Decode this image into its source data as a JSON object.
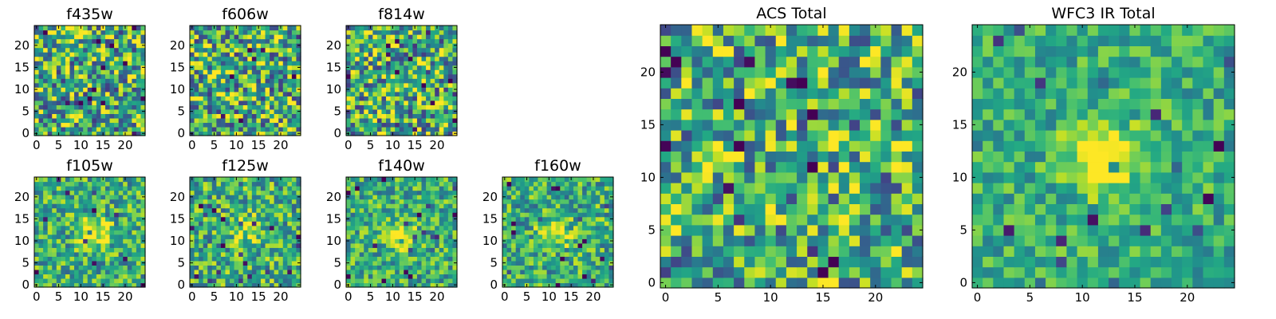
{
  "chart_data": [
    {
      "type": "heatmap",
      "title": "f435w",
      "grid": 24,
      "xlim": [
        -0.5,
        24.5
      ],
      "ylim": [
        -0.5,
        24.5
      ],
      "xticks": [
        0,
        5,
        10,
        15,
        20
      ],
      "yticks": [
        0,
        5,
        10,
        15,
        20
      ],
      "pattern": "noise",
      "seed": 11,
      "peak": 0.0,
      "nlev": 0.45
    },
    {
      "type": "heatmap",
      "title": "f606w",
      "grid": 24,
      "xlim": [
        -0.5,
        24.5
      ],
      "ylim": [
        -0.5,
        24.5
      ],
      "xticks": [
        0,
        5,
        10,
        15,
        20
      ],
      "yticks": [
        0,
        5,
        10,
        15,
        20
      ],
      "pattern": "noise",
      "seed": 23,
      "peak": 0.0,
      "nlev": 0.45
    },
    {
      "type": "heatmap",
      "title": "f814w",
      "grid": 24,
      "xlim": [
        -0.5,
        24.5
      ],
      "ylim": [
        -0.5,
        24.5
      ],
      "xticks": [
        0,
        5,
        10,
        15,
        20
      ],
      "yticks": [
        0,
        5,
        10,
        15,
        20
      ],
      "pattern": "noise",
      "seed": 37,
      "peak": 0.1,
      "nlev": 0.45
    },
    {
      "type": "heatmap",
      "title": "f105w",
      "grid": 24,
      "xlim": [
        -0.5,
        24.5
      ],
      "ylim": [
        -0.5,
        24.5
      ],
      "xticks": [
        0,
        5,
        10,
        15,
        20
      ],
      "yticks": [
        0,
        5,
        10,
        15,
        20
      ],
      "pattern": "source",
      "seed": 41,
      "center": [
        13,
        12
      ],
      "peak": 0.45,
      "nlev": 0.3
    },
    {
      "type": "heatmap",
      "title": "f125w",
      "grid": 24,
      "xlim": [
        -0.5,
        24.5
      ],
      "ylim": [
        -0.5,
        24.5
      ],
      "xticks": [
        0,
        5,
        10,
        15,
        20
      ],
      "yticks": [
        0,
        5,
        10,
        15,
        20
      ],
      "pattern": "source",
      "seed": 53,
      "center": [
        12,
        13
      ],
      "peak": 0.3,
      "nlev": 0.32
    },
    {
      "type": "heatmap",
      "title": "f140w",
      "grid": 24,
      "xlim": [
        -0.5,
        24.5
      ],
      "ylim": [
        -0.5,
        24.5
      ],
      "xticks": [
        0,
        5,
        10,
        15,
        20
      ],
      "yticks": [
        0,
        5,
        10,
        15,
        20
      ],
      "pattern": "source",
      "seed": 67,
      "center": [
        12,
        11
      ],
      "peak": 0.45,
      "nlev": 0.28
    },
    {
      "type": "heatmap",
      "title": "f160w",
      "grid": 24,
      "xlim": [
        -0.5,
        24.5
      ],
      "ylim": [
        -0.5,
        24.5
      ],
      "xticks": [
        0,
        5,
        10,
        15,
        20
      ],
      "yticks": [
        0,
        5,
        10,
        15,
        20
      ],
      "pattern": "source",
      "seed": 71,
      "center": [
        11,
        12
      ],
      "peak": 0.45,
      "nlev": 0.3
    },
    {
      "type": "heatmap",
      "title": "ACS Total",
      "grid": 24,
      "xlim": [
        -0.5,
        24.5
      ],
      "ylim": [
        -0.5,
        24.5
      ],
      "xticks": [
        0,
        5,
        10,
        15,
        20
      ],
      "yticks": [
        0,
        5,
        10,
        15,
        20
      ],
      "pattern": "noise",
      "seed": 83,
      "peak": 0.0,
      "nlev": 0.42
    },
    {
      "type": "heatmap",
      "title": "WFC3 IR Total",
      "grid": 24,
      "xlim": [
        -0.5,
        24.5
      ],
      "ylim": [
        -0.5,
        24.5
      ],
      "xticks": [
        0,
        5,
        10,
        15,
        20
      ],
      "yticks": [
        0,
        5,
        10,
        15,
        20
      ],
      "pattern": "source",
      "seed": 97,
      "center": [
        12,
        12
      ],
      "peak": 0.6,
      "nlev": 0.22
    }
  ]
}
